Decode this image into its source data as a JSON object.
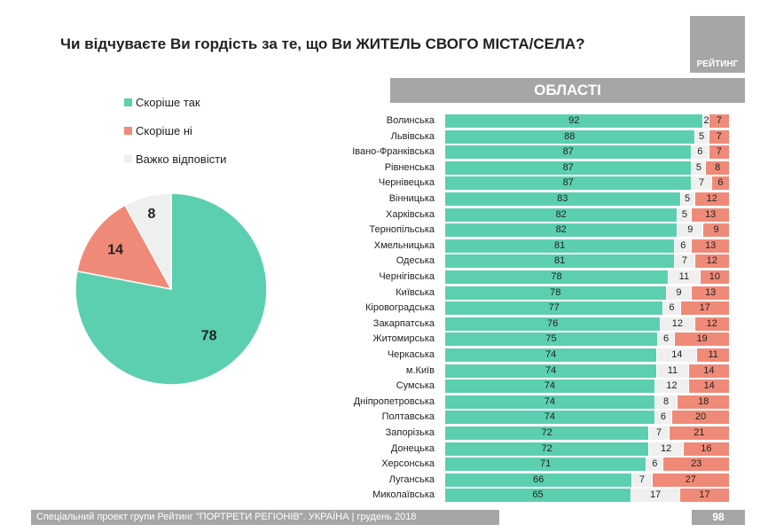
{
  "title": "Чи відчуваєте Ви гордість за те, що Ви ЖИТЕЛЬ СВОГО МІСТА/СЕЛА?",
  "logo": "РЕЙТИНГ",
  "footer": "Спеціальний проект групи Рейтинг \"ПОРТРЕТИ РЕГІОНІВ\". УКРАЇНА | грудень 2018",
  "page_number": "98",
  "colors": {
    "yes": "#5ccfb0",
    "no": "#f08a78",
    "hard": "#efefef"
  },
  "chart_data": [
    {
      "type": "pie",
      "legend": [
        "Скоріше так",
        "Скоріше ні",
        "Важко відповісти"
      ],
      "values": [
        78,
        14,
        8
      ],
      "labels": [
        "78",
        "14",
        "8"
      ]
    },
    {
      "type": "bar",
      "stacked": true,
      "orientation": "horizontal",
      "title": "ОБЛАСТІ",
      "categories": [
        "Волинська",
        "Львівська",
        "Івано-Франківська",
        "Рівненська",
        "Чернівецька",
        "Вінницька",
        "Харківська",
        "Тернопільська",
        "Хмельницька",
        "Одеська",
        "Чернігівська",
        "Київська",
        "Кіровоградська",
        "Закарпатська",
        "Житомирська",
        "Черкаська",
        "м.Київ",
        "Сумська",
        "Дніпропетровська",
        "Полтавська",
        "Запорізька",
        "Донецька",
        "Херсонська",
        "Луганська",
        "Миколаївська"
      ],
      "series": [
        {
          "name": "Скоріше так",
          "values": [
            92,
            88,
            87,
            87,
            87,
            83,
            82,
            82,
            81,
            81,
            78,
            78,
            77,
            76,
            75,
            74,
            74,
            74,
            74,
            74,
            72,
            72,
            71,
            66,
            65
          ]
        },
        {
          "name": "Важко відповісти",
          "values": [
            2,
            5,
            6,
            5,
            7,
            5,
            5,
            9,
            6,
            7,
            11,
            9,
            6,
            12,
            6,
            14,
            11,
            12,
            8,
            6,
            7,
            12,
            6,
            7,
            17
          ]
        },
        {
          "name": "Скоріше ні",
          "values": [
            7,
            7,
            7,
            8,
            6,
            12,
            13,
            9,
            13,
            12,
            10,
            13,
            17,
            12,
            19,
            11,
            14,
            14,
            18,
            20,
            21,
            16,
            23,
            27,
            17
          ]
        }
      ]
    }
  ]
}
